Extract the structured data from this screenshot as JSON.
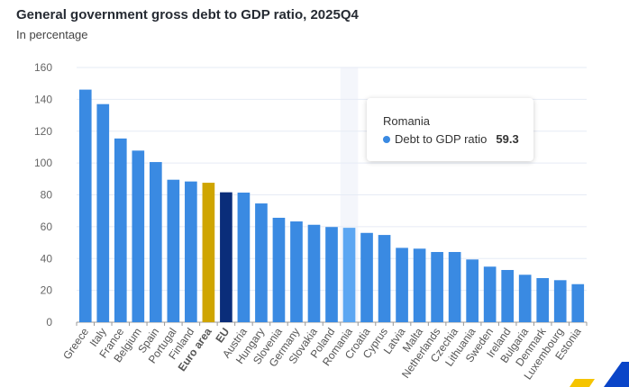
{
  "header": {
    "title": "General government gross debt to GDP ratio, 2025Q4",
    "subtitle": "In percentage"
  },
  "tooltip": {
    "title": "Romania",
    "series": "Debt to GDP ratio",
    "value": "59.3"
  },
  "colors": {
    "bar": "#3a8ae2",
    "euro_area": "#cfa500",
    "eu": "#0a2d7a",
    "highlight": "#5ba6f2",
    "grid": "#e6ebf5"
  },
  "chart_data": {
    "type": "bar",
    "title": "General government gross debt to GDP ratio, 2025Q4",
    "subtitle": "In percentage",
    "xlabel": "",
    "ylabel": "",
    "ylim": [
      0,
      160
    ],
    "yticks": [
      0,
      20,
      40,
      60,
      80,
      100,
      120,
      140,
      160
    ],
    "grid": true,
    "categories": [
      "Greece",
      "Italy",
      "France",
      "Belgium",
      "Spain",
      "Portugal",
      "Finland",
      "Euro area",
      "EU",
      "Austria",
      "Hungary",
      "Slovenia",
      "Germany",
      "Slovakia",
      "Poland",
      "Romania",
      "Croatia",
      "Cyprus",
      "Latvia",
      "Malta",
      "Netherlands",
      "Czechia",
      "Lithuania",
      "Sweden",
      "Ireland",
      "Bulgaria",
      "Denmark",
      "Luxembourg",
      "Estonia"
    ],
    "bold_categories": [
      "Euro area",
      "EU"
    ],
    "highlighted": "Romania",
    "series": [
      {
        "name": "Debt to GDP ratio",
        "values": [
          146.1,
          137.0,
          115.4,
          107.8,
          100.6,
          89.5,
          88.4,
          87.6,
          81.6,
          81.4,
          74.6,
          65.6,
          63.3,
          61.2,
          59.8,
          59.3,
          56.1,
          54.8,
          46.7,
          46.2,
          44.1,
          44.1,
          39.4,
          34.9,
          32.8,
          29.8,
          27.7,
          26.4,
          23.9
        ]
      }
    ]
  }
}
